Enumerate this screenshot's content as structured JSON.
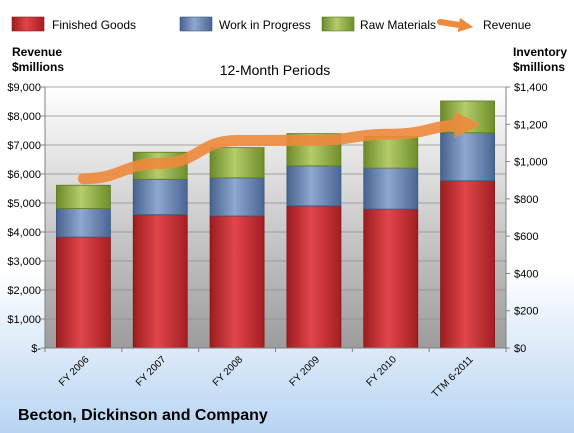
{
  "chart_data": {
    "type": "bar",
    "stacked": true,
    "subtitle": "12-Month Periods",
    "company": "Becton, Dickinson and Company",
    "y_left_label": [
      "Revenue",
      "$millions"
    ],
    "y_right_label": [
      "Inventory",
      "$millions"
    ],
    "categories": [
      "FY 2006",
      "FY 2007",
      "FY 2008",
      "FY 2009",
      "FY 2010",
      "TTM 6-2011"
    ],
    "y_left_ticks": [
      "$-",
      "$1,000",
      "$2,000",
      "$3,000",
      "$4,000",
      "$5,000",
      "$6,000",
      "$7,000",
      "$8,000",
      "$9,000"
    ],
    "y_right_ticks": [
      "$0",
      "$200",
      "$400",
      "$600",
      "$800",
      "$1,000",
      "$1,200",
      "$1,400"
    ],
    "ylim_left": [
      0,
      9000
    ],
    "ylim_right": [
      0,
      1400
    ],
    "legend_position": "top",
    "series": [
      {
        "name": "Finished Goods",
        "axis": "right",
        "color": "#c0282d",
        "values": [
          595,
          715,
          708,
          762,
          745,
          897
        ]
      },
      {
        "name": "Work in Progress",
        "axis": "right",
        "color": "#5878a8",
        "values": [
          153,
          190,
          205,
          215,
          220,
          258
        ]
      },
      {
        "name": "Raw Materials",
        "axis": "right",
        "color": "#8aa83c",
        "values": [
          125,
          145,
          162,
          173,
          170,
          170
        ]
      },
      {
        "name": "Revenue",
        "axis": "left",
        "type": "line",
        "color": "#ee8a3c",
        "values": [
          5835,
          6360,
          7156,
          7160,
          7372,
          7700
        ]
      }
    ]
  }
}
